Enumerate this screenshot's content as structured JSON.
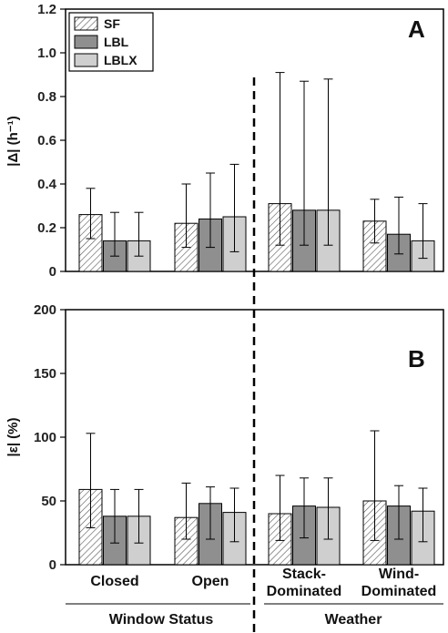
{
  "colors": {
    "SF": "#ffffff",
    "LBL": "#8f8f8f",
    "LBLX": "#cfcfcf",
    "axis": "#000000"
  },
  "chart_data": [
    {
      "type": "bar",
      "panel_label": "A",
      "ylabel": "|Δ| (h⁻¹)",
      "ylim": [
        0,
        1.2
      ],
      "yticks": [
        "0",
        "0.2",
        "0.4",
        "0.6",
        "0.8",
        "1.0",
        "1.2"
      ],
      "legend": {
        "placement": "top-left",
        "entries": [
          "SF",
          "LBL",
          "LBLX"
        ]
      },
      "categories": [
        "Closed",
        "Open",
        "Stack-Dominated",
        "Wind-Dominated"
      ],
      "series": [
        {
          "name": "SF",
          "values": [
            0.26,
            0.22,
            0.31,
            0.23
          ],
          "err_low": [
            0.15,
            0.11,
            0.12,
            0.13
          ],
          "err_high": [
            0.38,
            0.4,
            0.91,
            0.33
          ]
        },
        {
          "name": "LBL",
          "values": [
            0.14,
            0.24,
            0.28,
            0.17
          ],
          "err_low": [
            0.07,
            0.11,
            0.12,
            0.08
          ],
          "err_high": [
            0.27,
            0.45,
            0.87,
            0.34
          ]
        },
        {
          "name": "LBLX",
          "values": [
            0.14,
            0.25,
            0.28,
            0.14
          ],
          "err_low": [
            0.07,
            0.09,
            0.12,
            0.06
          ],
          "err_high": [
            0.27,
            0.49,
            0.88,
            0.31
          ]
        }
      ]
    },
    {
      "type": "bar",
      "panel_label": "B",
      "ylabel": "|ε| (%)",
      "ylim": [
        0,
        200
      ],
      "yticks": [
        "0",
        "50",
        "100",
        "150",
        "200"
      ],
      "categories": [
        "Closed",
        "Open",
        "Stack-Dominated",
        "Wind-Dominated"
      ],
      "series": [
        {
          "name": "SF",
          "values": [
            59,
            37,
            40,
            50
          ],
          "err_low": [
            29,
            20,
            19,
            19
          ],
          "err_high": [
            103,
            64,
            70,
            105
          ]
        },
        {
          "name": "LBL",
          "values": [
            38,
            48,
            46,
            46
          ],
          "err_low": [
            17,
            20,
            21,
            20
          ],
          "err_high": [
            59,
            61,
            68,
            62
          ]
        },
        {
          "name": "LBLX",
          "values": [
            38,
            41,
            45,
            42
          ],
          "err_low": [
            17,
            18,
            20,
            18
          ],
          "err_high": [
            59,
            60,
            68,
            60
          ]
        }
      ]
    }
  ],
  "x_labels": [
    [
      "Closed"
    ],
    [
      "Open"
    ],
    [
      "Stack-",
      "Dominated"
    ],
    [
      "Wind-",
      "Dominated"
    ]
  ],
  "group_labels": [
    "Window Status",
    "Weather"
  ]
}
